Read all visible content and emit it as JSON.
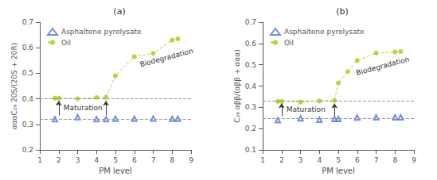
{
  "chart_data": [
    {
      "type": "scatter",
      "title": "(a)",
      "xlabel": "PM level",
      "ylabel": "αααC₂₉ 20S/(20S + 20R)",
      "xlim": [
        1,
        9
      ],
      "xticks": [
        1,
        2,
        3,
        4,
        5,
        6,
        7,
        8,
        9
      ],
      "ylim": [
        0.2,
        0.7
      ],
      "yticks": [
        0.2,
        0.3,
        0.4,
        0.5,
        0.6,
        0.7
      ],
      "grid": false,
      "legend": "upper left",
      "series": [
        {
          "name": "Asphaltene pyrolysate",
          "type": "scatter",
          "marker": "triangle-open",
          "x": [
            1.8,
            3,
            4,
            4.5,
            5,
            6,
            7,
            8,
            8.3
          ],
          "values": [
            0.32,
            0.328,
            0.32,
            0.32,
            0.322,
            0.322,
            0.323,
            0.322,
            0.322
          ]
        },
        {
          "name": "Oil",
          "type": "line",
          "marker": "circle",
          "line_style": "dashed",
          "x": [
            1.8,
            2,
            3,
            4,
            4.5,
            5,
            6,
            7,
            8,
            8.3
          ],
          "values": [
            0.402,
            0.403,
            0.4,
            0.405,
            0.406,
            0.49,
            0.565,
            0.578,
            0.63,
            0.635
          ]
        }
      ],
      "hlines": [
        0.4,
        0.322
      ],
      "arrows": [
        {
          "x": 2.0,
          "y_start": 0.335,
          "y_end": 0.392
        },
        {
          "x": 4.5,
          "y_start": 0.335,
          "y_end": 0.392
        }
      ],
      "annotations": [
        {
          "text": "Maturation",
          "x": 2.25,
          "y": 0.35
        },
        {
          "text": "Biodegradation",
          "x": 6.35,
          "y": 0.52
        }
      ]
    },
    {
      "type": "scatter",
      "title": "(b)",
      "xlabel": "PM level",
      "ylabel": "C₂₉ αββ/(αββ + ααα)",
      "xlim": [
        1,
        9
      ],
      "xticks": [
        1,
        2,
        3,
        4,
        5,
        6,
        7,
        8,
        9
      ],
      "ylim": [
        0.1,
        0.7
      ],
      "yticks": [
        0.1,
        0.2,
        0.3,
        0.4,
        0.5,
        0.6,
        0.7
      ],
      "grid": false,
      "legend": "upper left",
      "series": [
        {
          "name": "Asphaltene pyrolysate",
          "type": "scatter",
          "marker": "triangle-open",
          "x": [
            1.8,
            3,
            4,
            4.8,
            5,
            6,
            7,
            8,
            8.3
          ],
          "values": [
            0.24,
            0.248,
            0.242,
            0.245,
            0.245,
            0.252,
            0.253,
            0.253,
            0.253
          ]
        },
        {
          "name": "Oil",
          "type": "line",
          "marker": "circle",
          "line_style": "dashed",
          "x": [
            1.8,
            2,
            3,
            4,
            4.8,
            5,
            5.5,
            6,
            7,
            8,
            8.3
          ],
          "values": [
            0.328,
            0.328,
            0.325,
            0.33,
            0.332,
            0.415,
            0.468,
            0.52,
            0.555,
            0.56,
            0.562
          ]
        }
      ],
      "hlines": [
        0.325,
        0.247
      ],
      "arrows": [
        {
          "x": 2.0,
          "y_start": 0.258,
          "y_end": 0.318
        },
        {
          "x": 4.8,
          "y_start": 0.258,
          "y_end": 0.318
        }
      ],
      "annotations": [
        {
          "text": "Maturation",
          "x": 2.25,
          "y": 0.272
        },
        {
          "text": "Biodegradation",
          "x": 6.0,
          "y": 0.445
        }
      ]
    }
  ]
}
